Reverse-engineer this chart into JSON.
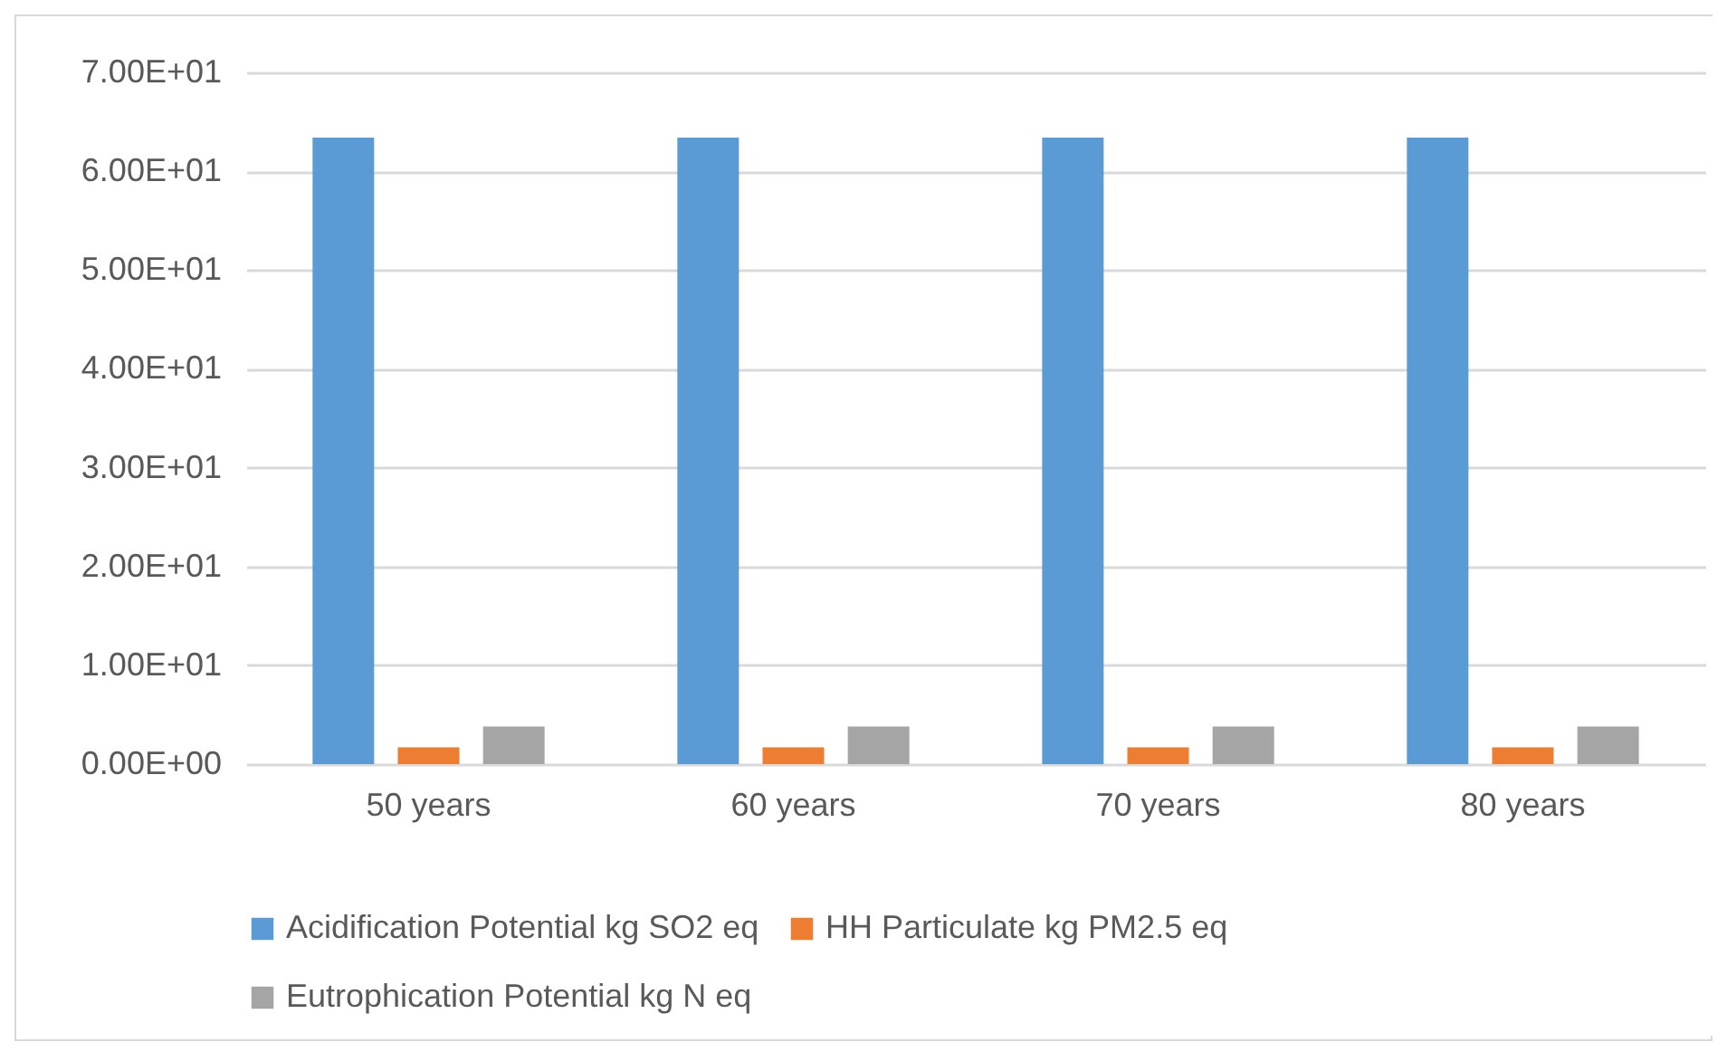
{
  "chart_data": {
    "type": "bar",
    "categories": [
      "50 years",
      "60 years",
      "70 years",
      "80 years"
    ],
    "series": [
      {
        "name": "Acidification Potential kg SO2 eq",
        "color": "#5b9bd5",
        "values": [
          63.4,
          63.4,
          63.4,
          63.4
        ]
      },
      {
        "name": "HH Particulate kg PM2.5 eq",
        "color": "#ed7d31",
        "values": [
          1.7,
          1.7,
          1.7,
          1.7
        ]
      },
      {
        "name": "Eutrophication Potential kg N eq",
        "color": "#a5a5a5",
        "values": [
          3.8,
          3.8,
          3.8,
          3.8
        ]
      }
    ],
    "ylim": [
      0,
      70
    ],
    "yticks": [
      {
        "value": 0,
        "label": "0.00E+00"
      },
      {
        "value": 10,
        "label": "1.00E+01"
      },
      {
        "value": 20,
        "label": "2.00E+01"
      },
      {
        "value": 30,
        "label": "3.00E+01"
      },
      {
        "value": 40,
        "label": "4.00E+01"
      },
      {
        "value": 50,
        "label": "5.00E+01"
      },
      {
        "value": 60,
        "label": "6.00E+01"
      },
      {
        "value": 70,
        "label": "7.00E+01"
      }
    ],
    "grid": "y",
    "legend": "bottom"
  }
}
